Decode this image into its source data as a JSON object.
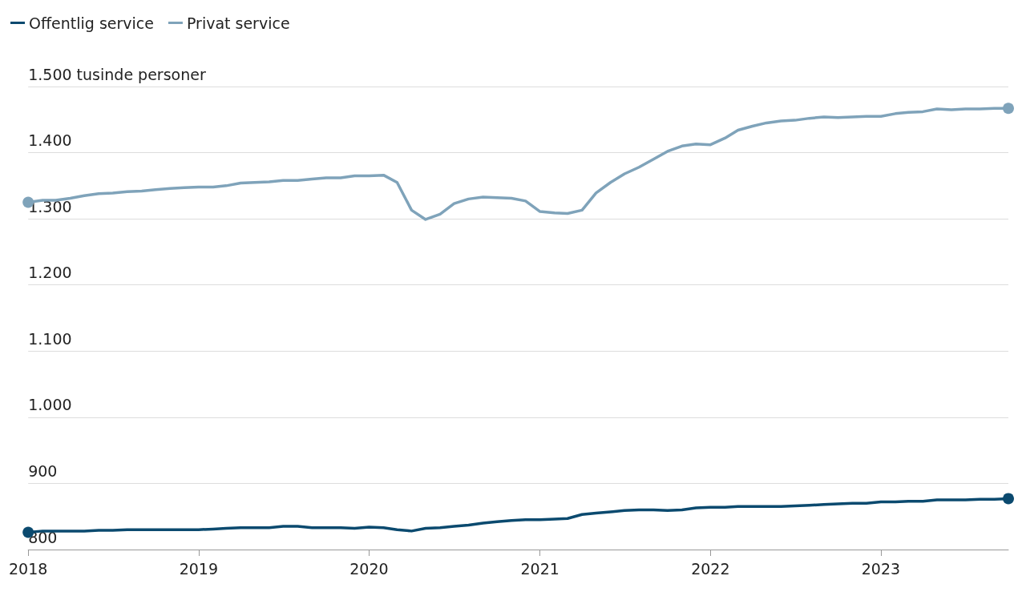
{
  "chart_data": {
    "type": "line",
    "x": [
      "2018-01",
      "2018-02",
      "2018-03",
      "2018-04",
      "2018-05",
      "2018-06",
      "2018-07",
      "2018-08",
      "2018-09",
      "2018-10",
      "2018-11",
      "2018-12",
      "2019-01",
      "2019-02",
      "2019-03",
      "2019-04",
      "2019-05",
      "2019-06",
      "2019-07",
      "2019-08",
      "2019-09",
      "2019-10",
      "2019-11",
      "2019-12",
      "2020-01",
      "2020-02",
      "2020-03",
      "2020-04",
      "2020-05",
      "2020-06",
      "2020-07",
      "2020-08",
      "2020-09",
      "2020-10",
      "2020-11",
      "2020-12",
      "2021-01",
      "2021-02",
      "2021-03",
      "2021-04",
      "2021-05",
      "2021-06",
      "2021-07",
      "2021-08",
      "2021-09",
      "2021-10",
      "2021-11",
      "2021-12",
      "2022-01",
      "2022-02",
      "2022-03",
      "2022-04",
      "2022-05",
      "2022-06",
      "2022-07",
      "2022-08",
      "2022-09",
      "2022-10",
      "2022-11",
      "2022-12",
      "2023-01",
      "2023-02",
      "2023-03",
      "2023-04",
      "2023-05",
      "2023-06",
      "2023-07",
      "2023-08",
      "2023-09",
      "2023-10"
    ],
    "series": [
      {
        "name": "Offentlig service",
        "color": "#0b4a6f",
        "values": [
          826,
          828,
          828,
          828,
          828,
          829,
          829,
          830,
          830,
          830,
          830,
          830,
          830,
          831,
          832,
          833,
          833,
          833,
          835,
          835,
          833,
          833,
          833,
          832,
          834,
          833,
          830,
          828,
          832,
          833,
          835,
          837,
          840,
          842,
          844,
          845,
          845,
          846,
          847,
          853,
          855,
          857,
          859,
          860,
          860,
          859,
          860,
          863,
          864,
          864,
          865,
          865,
          865,
          865,
          866,
          867,
          868,
          869,
          870,
          870,
          872,
          872,
          873,
          873,
          875,
          875,
          875,
          876,
          876,
          877
        ]
      },
      {
        "name": "Privat service",
        "color": "#7fa3ba",
        "values": [
          1325,
          1328,
          1328,
          1331,
          1335,
          1338,
          1339,
          1341,
          1342,
          1344,
          1346,
          1347,
          1348,
          1348,
          1350,
          1354,
          1355,
          1356,
          1358,
          1358,
          1360,
          1362,
          1362,
          1365,
          1365,
          1366,
          1355,
          1313,
          1299,
          1307,
          1323,
          1330,
          1333,
          1332,
          1331,
          1327,
          1311,
          1309,
          1308,
          1313,
          1339,
          1355,
          1368,
          1378,
          1390,
          1402,
          1410,
          1413,
          1412,
          1422,
          1434,
          1440,
          1445,
          1448,
          1449,
          1452,
          1454,
          1453,
          1454,
          1455,
          1455,
          1459,
          1461,
          1462,
          1466,
          1465,
          1466,
          1466,
          1467,
          1467
        ]
      }
    ],
    "xlim": [
      "2018-01",
      "2023-10"
    ],
    "xticks": [
      {
        "value": "2018",
        "label": "2018"
      },
      {
        "value": "2019",
        "label": "2019"
      },
      {
        "value": "2020",
        "label": "2020"
      },
      {
        "value": "2021",
        "label": "2021"
      },
      {
        "value": "2022",
        "label": "2022"
      },
      {
        "value": "2023",
        "label": "2023"
      }
    ],
    "ylim": [
      800,
      1500
    ],
    "yticks": [
      {
        "value": 800,
        "label": "800"
      },
      {
        "value": 900,
        "label": "900"
      },
      {
        "value": 1000,
        "label": "1.000"
      },
      {
        "value": 1100,
        "label": "1.100"
      },
      {
        "value": 1200,
        "label": "1.200"
      },
      {
        "value": 1300,
        "label": "1.300"
      },
      {
        "value": 1400,
        "label": "1.400"
      },
      {
        "value": 1500,
        "label": "1.500 tusinde personer"
      }
    ],
    "grid": "y",
    "legend": "top left"
  }
}
